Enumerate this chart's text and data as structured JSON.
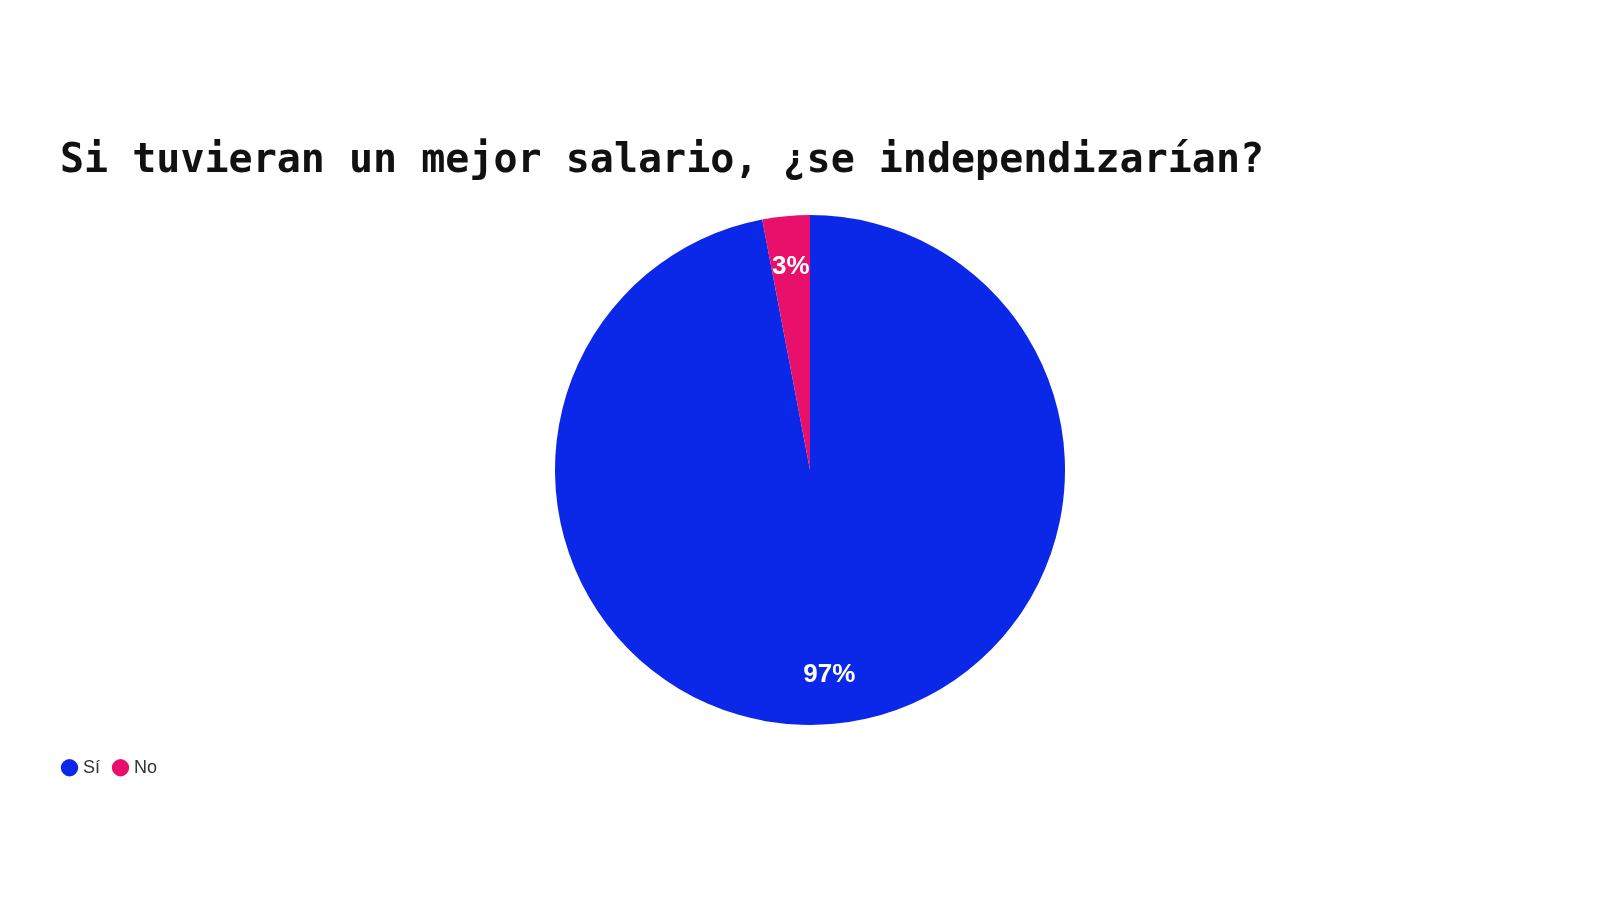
{
  "chart_data": {
    "type": "pie",
    "title": "Si tuvieran un mejor salario, ¿se independizarían?",
    "categories": [
      "Sí",
      "No"
    ],
    "values": [
      97,
      3
    ],
    "colors": [
      "#0b28e8",
      "#e8106a"
    ],
    "value_labels": [
      "97%",
      "3%"
    ],
    "legend": "bottom"
  }
}
